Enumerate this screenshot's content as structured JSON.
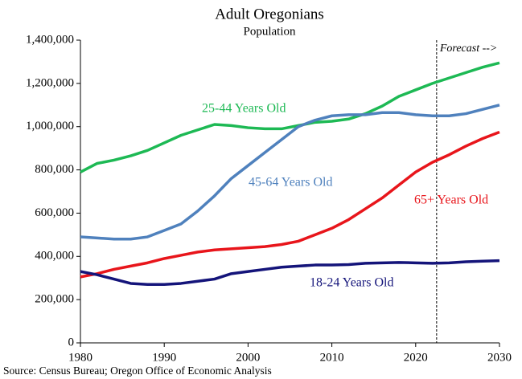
{
  "chart_data": {
    "type": "line",
    "title": "Adult Oregonians",
    "subtitle": "Population",
    "source": "Source: Census Bureau; Oregon Office of Economic Analysis",
    "annotation": "Forecast -->",
    "forecast_x": 2022.5,
    "x": [
      1980,
      1982,
      1984,
      1986,
      1988,
      1990,
      1992,
      1994,
      1996,
      1998,
      2000,
      2002,
      2004,
      2006,
      2008,
      2010,
      2012,
      2014,
      2016,
      2018,
      2020,
      2022,
      2024,
      2026,
      2028,
      2030
    ],
    "series": [
      {
        "name": "25-44 Years Old",
        "color": "#1db954",
        "values": [
          790000,
          830000,
          845000,
          865000,
          890000,
          925000,
          960000,
          985000,
          1010000,
          1005000,
          995000,
          990000,
          990000,
          1005000,
          1020000,
          1025000,
          1035000,
          1060000,
          1095000,
          1140000,
          1170000,
          1200000,
          1225000,
          1250000,
          1275000,
          1295000
        ]
      },
      {
        "name": "45-64 Years Old",
        "color": "#4f81bd",
        "values": [
          490000,
          485000,
          480000,
          480000,
          490000,
          520000,
          550000,
          610000,
          680000,
          760000,
          820000,
          880000,
          940000,
          1000000,
          1030000,
          1050000,
          1055000,
          1055000,
          1065000,
          1065000,
          1055000,
          1050000,
          1050000,
          1060000,
          1080000,
          1100000
        ]
      },
      {
        "name": "65+ Years Old",
        "color": "#e8151b",
        "values": [
          305000,
          320000,
          340000,
          355000,
          370000,
          390000,
          405000,
          420000,
          430000,
          435000,
          440000,
          445000,
          455000,
          470000,
          500000,
          530000,
          570000,
          620000,
          670000,
          730000,
          790000,
          835000,
          870000,
          910000,
          945000,
          975000
        ]
      },
      {
        "name": "18-24 Years Old",
        "color": "#14147a",
        "values": [
          330000,
          315000,
          295000,
          275000,
          270000,
          270000,
          275000,
          285000,
          295000,
          320000,
          330000,
          340000,
          350000,
          355000,
          360000,
          360000,
          362000,
          368000,
          370000,
          372000,
          370000,
          368000,
          370000,
          375000,
          378000,
          380000
        ]
      }
    ],
    "xlim": [
      1980,
      2030
    ],
    "xticks": [
      1980,
      1990,
      2000,
      2010,
      2020,
      2030
    ],
    "ylim": [
      0,
      1400000
    ],
    "yticks": [
      0,
      {
        "value": 200000,
        "label": "200,000"
      },
      {
        "value": 400000,
        "label": "400,000"
      },
      {
        "value": 600000,
        "label": "600,000"
      },
      {
        "value": 800000,
        "label": "800,000"
      },
      {
        "value": 1000000,
        "label": "1,000,000"
      },
      {
        "value": 1200000,
        "label": "1,200,000"
      },
      {
        "value": 1400000,
        "label": "1,400,000"
      }
    ],
    "grid": false
  }
}
